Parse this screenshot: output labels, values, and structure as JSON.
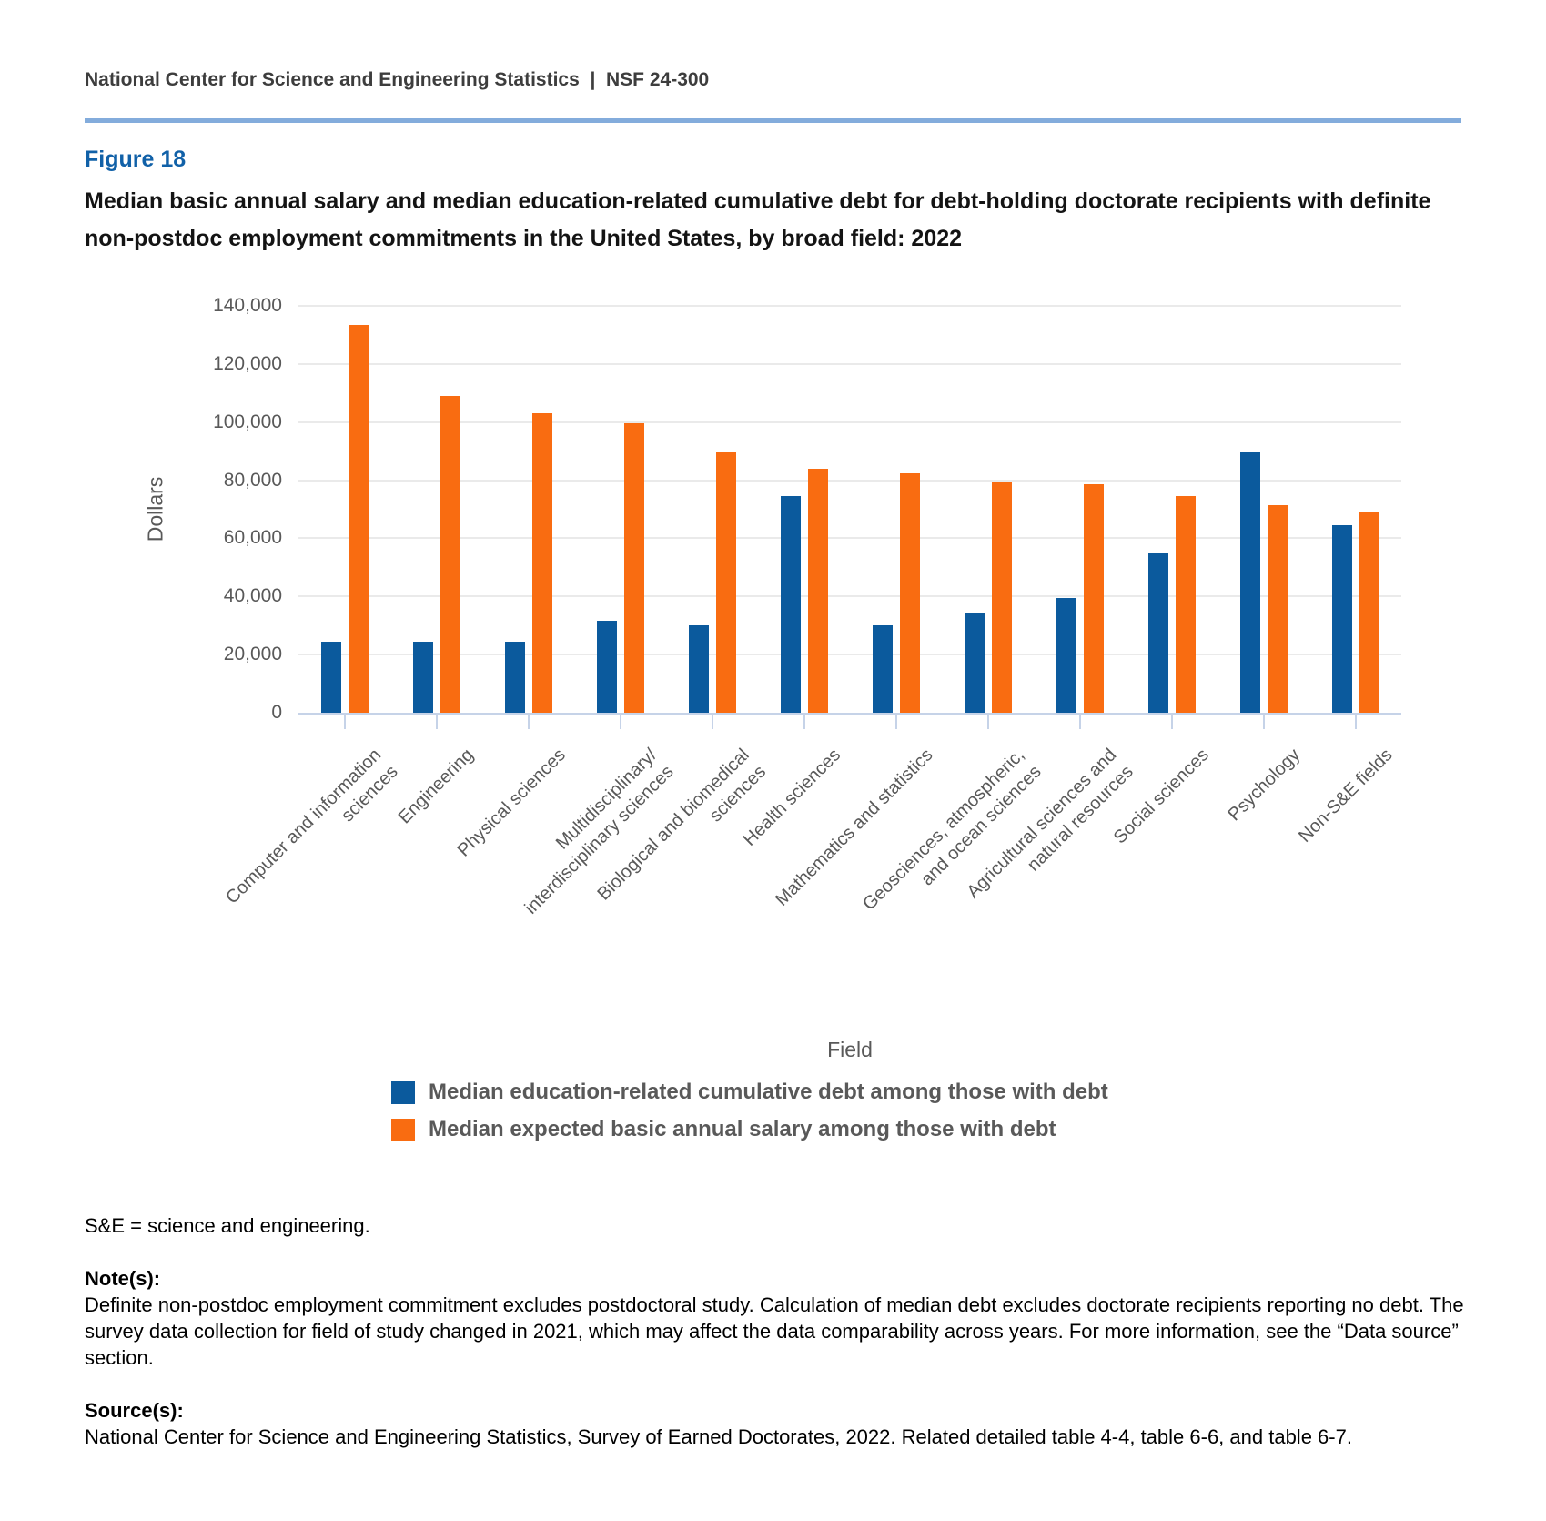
{
  "header": {
    "text": "National Center for Science and Engineering Statistics  |  NSF 24-300"
  },
  "figure_label": "Figure 18",
  "title": "Median basic annual salary and median education-related cumulative debt for debt-holding doctorate recipients with definite non-postdoc employment commitments in the United States, by broad field: 2022",
  "chart_data": {
    "type": "bar",
    "title": "Median basic annual salary and median education-related cumulative debt for debt-holding doctorate recipients with definite non-postdoc employment commitments in the United States, by broad field: 2022",
    "xlabel": "Field",
    "ylabel": "Dollars",
    "ylim": [
      0,
      140000
    ],
    "ytick_step": 20000,
    "grid": true,
    "legend_position": "bottom",
    "categories": [
      "Computer and information\nsciences",
      "Engineering",
      "Physical sciences",
      "Multidisciplinary/\ninterdisciplinary sciences",
      "Biological and biomedical\nsciences",
      "Health sciences",
      "Mathematics and statistics",
      "Geosciences, atmospheric,\nand ocean sciences",
      "Agricultural sciences and\nnatural resources",
      "Social sciences",
      "Psychology",
      "Non-S&E fields"
    ],
    "series": [
      {
        "name": "Median education-related cumulative debt among those with debt",
        "color": "#0b5a9d",
        "values": [
          24500,
          24500,
          24500,
          31500,
          30000,
          74500,
          30000,
          34500,
          39500,
          55000,
          89500,
          64500
        ]
      },
      {
        "name": "Median expected basic annual salary among those with debt",
        "color": "#f96c11",
        "values": [
          133500,
          109000,
          103000,
          99500,
          89500,
          84000,
          82500,
          79500,
          78500,
          74500,
          71500,
          69000
        ]
      }
    ]
  },
  "footnotes": {
    "abbrev": "S&E = science and engineering.",
    "notes_label": "Note(s):",
    "notes": "Definite non-postdoc employment commitment excludes postdoctoral study. Calculation of median debt excludes doctorate recipients reporting no debt. The survey data collection for field of study changed in 2021, which may affect the data comparability across years. For more information, see the “Data source” section.",
    "sources_label": "Source(s):",
    "sources": "National Center for Science and Engineering Statistics, Survey of Earned Doctorates, 2022. Related detailed table 4-4, table 6-6, and table 6-7."
  }
}
